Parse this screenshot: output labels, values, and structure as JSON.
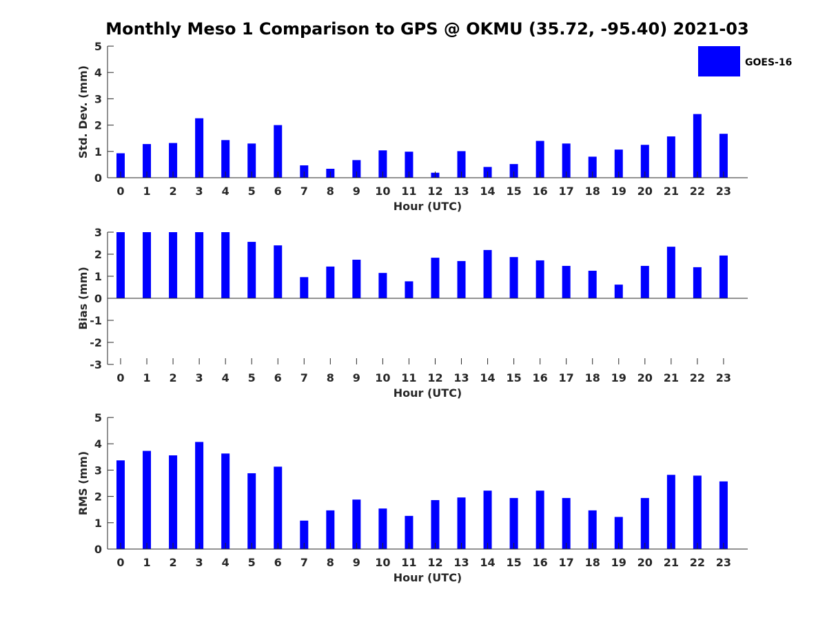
{
  "title": "Monthly Meso 1 Comparison to GPS @ OKMU (35.72, -95.40) 2021-03",
  "legend": {
    "label": "GOES-16",
    "color": "#0000ff"
  },
  "chart_data": [
    {
      "type": "bar",
      "xlabel": "Hour (UTC)",
      "ylabel": "Std. Dev. (mm)",
      "ylim": [
        0,
        5
      ],
      "yticks": [
        "0",
        "1",
        "2",
        "3",
        "4",
        "5"
      ],
      "categories": [
        "0",
        "1",
        "2",
        "3",
        "4",
        "5",
        "6",
        "7",
        "8",
        "9",
        "10",
        "11",
        "12",
        "13",
        "14",
        "15",
        "16",
        "17",
        "18",
        "19",
        "20",
        "21",
        "22",
        "23"
      ],
      "series": [
        {
          "name": "GOES-16",
          "color": "#0000ff",
          "values": [
            0.93,
            1.28,
            1.32,
            2.26,
            1.43,
            1.3,
            2.0,
            0.47,
            0.34,
            0.67,
            1.04,
            0.99,
            0.19,
            1.01,
            0.41,
            0.52,
            1.4,
            1.3,
            0.8,
            1.07,
            1.25,
            1.57,
            2.42,
            1.67
          ]
        }
      ],
      "legend": "top-right",
      "grid": false
    },
    {
      "type": "bar",
      "xlabel": "Hour (UTC)",
      "ylabel": "Bias (mm)",
      "ylim": [
        -3,
        3
      ],
      "yticks": [
        "-3",
        "-2",
        "-1",
        "0",
        "1",
        "2",
        "3"
      ],
      "categories": [
        "0",
        "1",
        "2",
        "3",
        "4",
        "5",
        "6",
        "7",
        "8",
        "9",
        "10",
        "11",
        "12",
        "13",
        "14",
        "15",
        "16",
        "17",
        "18",
        "19",
        "20",
        "21",
        "22",
        "23"
      ],
      "series": [
        {
          "name": "GOES-16",
          "color": "#0000ff",
          "values": [
            3.0,
            3.0,
            3.0,
            3.0,
            3.0,
            2.56,
            2.4,
            0.96,
            1.44,
            1.75,
            1.15,
            0.77,
            1.84,
            1.69,
            2.19,
            1.87,
            1.72,
            1.47,
            1.25,
            0.62,
            1.47,
            2.34,
            1.41,
            1.94
          ]
        }
      ],
      "grid": false
    },
    {
      "type": "bar",
      "xlabel": "Hour (UTC)",
      "ylabel": "RMS (mm)",
      "ylim": [
        0,
        5
      ],
      "yticks": [
        "0",
        "1",
        "2",
        "3",
        "4",
        "5"
      ],
      "categories": [
        "0",
        "1",
        "2",
        "3",
        "4",
        "5",
        "6",
        "7",
        "8",
        "9",
        "10",
        "11",
        "12",
        "13",
        "14",
        "15",
        "16",
        "17",
        "18",
        "19",
        "20",
        "21",
        "22",
        "23"
      ],
      "series": [
        {
          "name": "GOES-16",
          "color": "#0000ff",
          "values": [
            3.37,
            3.73,
            3.56,
            4.07,
            3.63,
            2.88,
            3.13,
            1.08,
            1.47,
            1.88,
            1.54,
            1.26,
            1.86,
            1.96,
            2.22,
            1.94,
            2.22,
            1.94,
            1.47,
            1.22,
            1.94,
            2.82,
            2.79,
            2.57
          ]
        }
      ],
      "grid": false
    }
  ]
}
